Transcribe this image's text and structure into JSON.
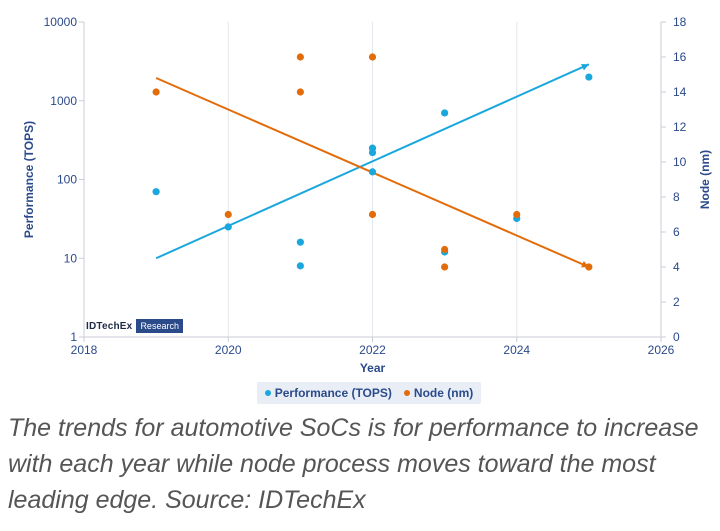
{
  "chart_data": {
    "type": "scatter",
    "xlabel": "Year",
    "ylabel_left": "Performance (TOPS)",
    "ylabel_right": "Node (nm)",
    "xlim": [
      2018,
      2026
    ],
    "y_left_scale": "log",
    "y_left_lim": [
      1,
      10000
    ],
    "y_right_lim": [
      0,
      18
    ],
    "x_ticks": [
      "2018",
      "2020",
      "2022",
      "2024",
      "2026"
    ],
    "y_left_ticks": [
      "1",
      "10",
      "100",
      "1000",
      "10000"
    ],
    "y_right_ticks": [
      "0",
      "2",
      "4",
      "6",
      "8",
      "10",
      "12",
      "14",
      "16",
      "18"
    ],
    "grid": "vertical lines",
    "legend_position": "bottom",
    "series": [
      {
        "name": "Performance (TOPS)",
        "axis": "left",
        "color": "#1aa7dd",
        "points": [
          {
            "x": 2019,
            "y": 70
          },
          {
            "x": 2020,
            "y": 25
          },
          {
            "x": 2021,
            "y": 16
          },
          {
            "x": 2021,
            "y": 8
          },
          {
            "x": 2022,
            "y": 250
          },
          {
            "x": 2022,
            "y": 220
          },
          {
            "x": 2022,
            "y": 125
          },
          {
            "x": 2023,
            "y": 700
          },
          {
            "x": 2023,
            "y": 12
          },
          {
            "x": 2024,
            "y": 32
          },
          {
            "x": 2025,
            "y": 2000
          }
        ],
        "trendline": {
          "x": [
            2019,
            2025
          ],
          "y": [
            10,
            2900
          ]
        }
      },
      {
        "name": "Node (nm)",
        "axis": "right",
        "color": "#e36c0a",
        "points": [
          {
            "x": 2019,
            "y": 14
          },
          {
            "x": 2020,
            "y": 7
          },
          {
            "x": 2021,
            "y": 16
          },
          {
            "x": 2021,
            "y": 14
          },
          {
            "x": 2022,
            "y": 16
          },
          {
            "x": 2022,
            "y": 7
          },
          {
            "x": 2023,
            "y": 5
          },
          {
            "x": 2023,
            "y": 4
          },
          {
            "x": 2024,
            "y": 7
          },
          {
            "x": 2025,
            "y": 4
          }
        ],
        "trendline": {
          "x": [
            2019,
            2025
          ],
          "y": [
            14.8,
            4
          ]
        }
      }
    ]
  },
  "legend": {
    "item1": "Performance (TOPS)",
    "item2": "Node (nm)"
  },
  "logo": {
    "name": "IDTechEx",
    "tag": "Research"
  },
  "caption": "The trends for automotive SoCs is for performance to increase with each year while node process moves toward the most leading edge. Source: IDTechEx"
}
